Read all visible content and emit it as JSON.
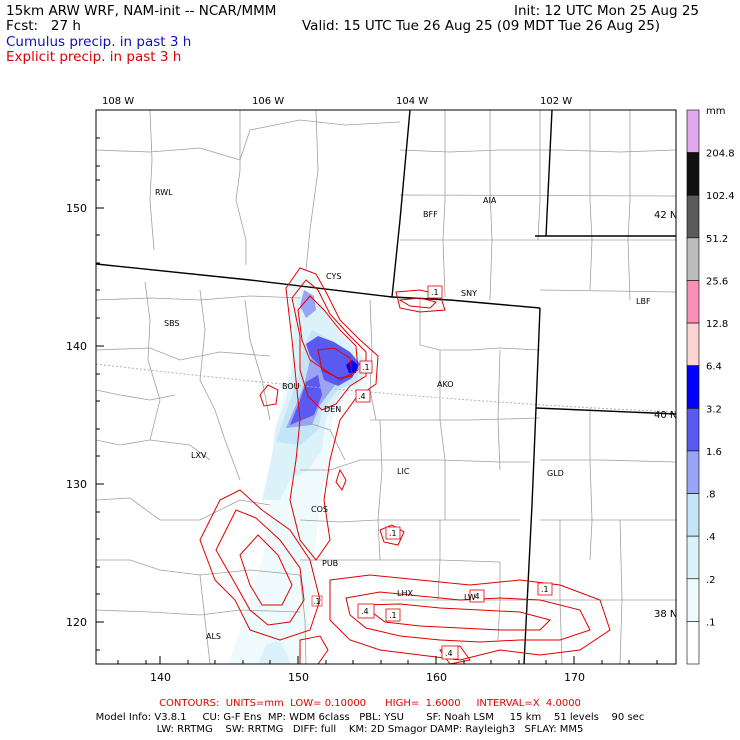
{
  "header": {
    "line1_left": "15km ARW WRF, NAM-init -- NCAR/MMM",
    "line1_right": "Init: 12 UTC Mon 25 Aug 25",
    "line2_left": "Fcst:   27 h",
    "line2_right": "Valid: 15 UTC Tue 26 Aug 25 (09 MDT Tue 26 Aug 25)",
    "legend_cumulus": "Cumulus precip. in past 3 h",
    "legend_explicit": "Explicit precip. in past 3 h",
    "color_cumulus": "#1010c0",
    "color_explicit": "#e00000"
  },
  "map": {
    "lon_labels": [
      "108 W",
      "106 W",
      "104 W",
      "102 W"
    ],
    "lat_labels": [
      "42 N",
      "40 N",
      "38 N"
    ],
    "x_ticks": [
      "140",
      "150",
      "160",
      "170"
    ],
    "y_ticks": [
      "150",
      "140",
      "130",
      "120"
    ],
    "cities": {
      "rwl": "RWL",
      "bff": "BFF",
      "aia": "AIA",
      "cys": "CYS",
      "sny": "SNY",
      "sbs": "SBS",
      "lbf": "LBF",
      "bou": "BOU",
      "den": "DEN",
      "ako": "AKO",
      "lxv": "LXV",
      "lic": "LIC",
      "gld": "GLD",
      "cos": "COS",
      "pub": "PUB",
      "lhx": "LHX",
      "lw": "LW",
      "als": "ALS"
    },
    "contour_labels": [
      ".1",
      ".1",
      ".4",
      ".1",
      ".1",
      ".4",
      ".1",
      ".4",
      ".4",
      ".1"
    ]
  },
  "colorbar": {
    "unit": "mm",
    "labels": [
      "204.8",
      "102.4",
      "51.2",
      "25.6",
      "12.8",
      "6.4",
      "3.2",
      "1.6",
      ".8",
      ".4",
      ".2",
      ".1"
    ],
    "colors": [
      "#e0a8f0",
      "#101010",
      "#5a5a5a",
      "#bcbcbc",
      "#f890b8",
      "#fcd4d4",
      "#0000ff",
      "#5a5af0",
      "#9aa4f4",
      "#c4e4f8",
      "#dcf2fa",
      "#eefafc",
      "#ffffff"
    ]
  },
  "footer": {
    "contours": "CONTOURS:  UNITS=mm  LOW= 0.10000      HIGH=  1.6000     INTERVAL=X  4.0000",
    "model_line1": "Model Info: V3.8.1     CU: G-F Ens  MP: WDM 6class   PBL: YSU       SF: Noah LSM     15 km    51 levels    90 sec",
    "model_line2": "LW: RRTMG    SW: RRTMG   DIFF: full    KM: 2D Smagor DAMP: Rayleigh3   SFLAY: MM5"
  }
}
